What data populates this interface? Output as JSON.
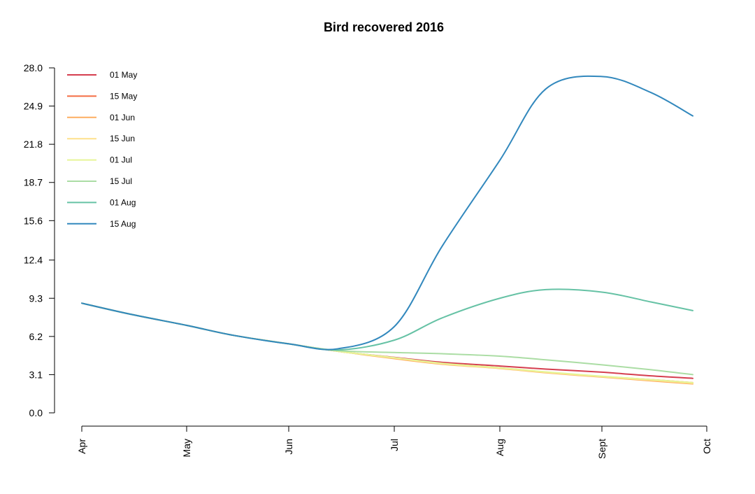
{
  "chart_data": {
    "type": "line",
    "title": "Bird recovered 2016",
    "xlabel": "",
    "ylabel": "",
    "x_ticks": [
      "Apr",
      "May",
      "Jun",
      "Jul",
      "Aug",
      "Sept",
      "Oct"
    ],
    "y_ticks": [
      "0.0",
      "3.1",
      "6.2",
      "9.3",
      "12.4",
      "15.6",
      "18.7",
      "21.8",
      "24.9",
      "28.0"
    ],
    "ylim": [
      0,
      28.0
    ],
    "legend_position": "top-left",
    "grid": false,
    "x": [
      "Apr 01",
      "Apr 15",
      "May 01",
      "May 15",
      "Jun 01",
      "Jun 15",
      "Jul 01",
      "Jul 15",
      "Aug 01",
      "Aug 15",
      "Sep 01",
      "Sep 15",
      "Sep 27"
    ],
    "series": [
      {
        "name": "01 May",
        "color": "#d53e4f",
        "values": [
          8.9,
          8.0,
          7.1,
          6.3,
          5.6,
          5.0,
          4.5,
          4.1,
          3.8,
          3.55,
          3.3,
          3.0,
          2.8
        ]
      },
      {
        "name": "15 May",
        "color": "#f46d43",
        "values": [
          8.9,
          8.0,
          7.1,
          6.3,
          5.6,
          5.0,
          4.45,
          4.0,
          3.65,
          3.3,
          2.95,
          2.7,
          2.45
        ]
      },
      {
        "name": "01 Jun",
        "color": "#fdae61",
        "values": [
          8.9,
          8.0,
          7.1,
          6.3,
          5.6,
          5.0,
          4.4,
          3.95,
          3.6,
          3.25,
          2.9,
          2.6,
          2.35
        ]
      },
      {
        "name": "15 Jun",
        "color": "#fee08b",
        "values": [
          8.9,
          8.0,
          7.1,
          6.3,
          5.6,
          5.0,
          4.45,
          3.98,
          3.62,
          3.28,
          2.93,
          2.65,
          2.4
        ]
      },
      {
        "name": "01 Jul",
        "color": "#e6f598",
        "values": [
          8.9,
          8.0,
          7.1,
          6.3,
          5.6,
          5.0,
          4.48,
          4.02,
          3.66,
          3.32,
          2.97,
          2.7,
          2.45
        ]
      },
      {
        "name": "15 Jul",
        "color": "#abdda4",
        "values": [
          8.9,
          8.0,
          7.1,
          6.3,
          5.6,
          5.05,
          4.9,
          4.8,
          4.6,
          4.3,
          3.9,
          3.5,
          3.1
        ]
      },
      {
        "name": "01 Aug",
        "color": "#66c2a5",
        "values": [
          8.9,
          8.0,
          7.1,
          6.3,
          5.6,
          5.1,
          5.9,
          7.7,
          9.3,
          10.0,
          9.8,
          9.0,
          8.3
        ]
      },
      {
        "name": "15 Aug",
        "color": "#3288bd",
        "values": [
          8.9,
          8.0,
          7.1,
          6.3,
          5.6,
          5.2,
          7.0,
          13.5,
          20.5,
          26.3,
          27.3,
          26.0,
          24.1
        ]
      }
    ]
  }
}
